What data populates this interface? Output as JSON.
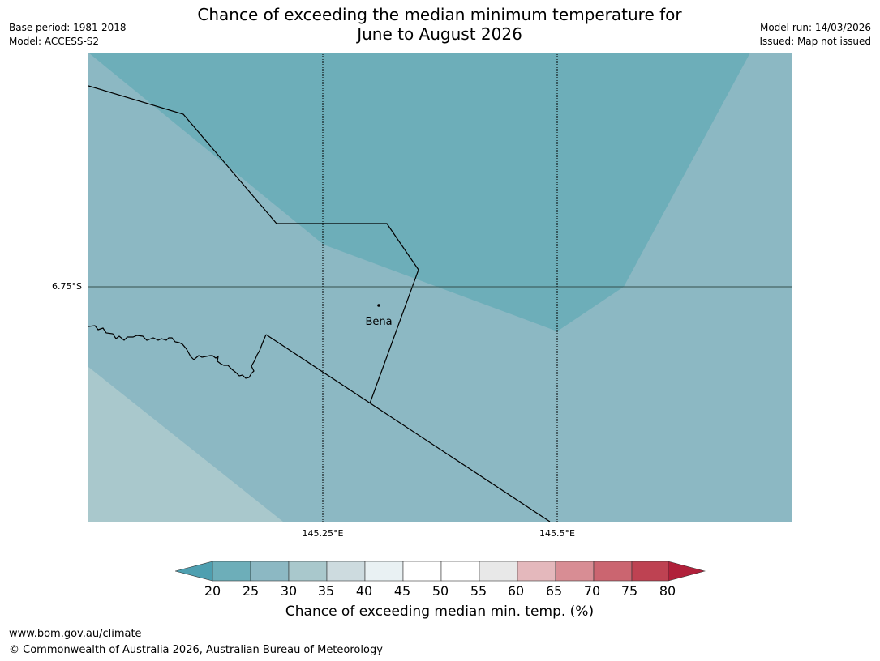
{
  "header": {
    "title_line1": "Chance of exceeding the median minimum temperature for",
    "title_line2": "June to August 2026",
    "base_period": "Base period: 1981-2018",
    "model": "Model: ACCESS-S2",
    "model_run": "Model run: 14/03/2026",
    "issued": "Issued: Map not issued"
  },
  "map": {
    "lat_tick": "6.75°S",
    "lon_ticks": [
      "145.25°E",
      "145.5°E"
    ],
    "places": [
      {
        "name": "Bena"
      }
    ]
  },
  "colorbar": {
    "title": "Chance of exceeding median min. temp. (%)",
    "tick_labels": [
      "20",
      "25",
      "30",
      "35",
      "40",
      "45",
      "50",
      "55",
      "60",
      "65",
      "70",
      "75",
      "80"
    ],
    "colors": {
      "lt20": "#4e9fb0",
      "20-25": "#6daeb9",
      "25-30": "#8cb8c3",
      "30-35": "#a9c8cc",
      "35-40": "#cddbdf",
      "40-45": "#e9f1f3",
      "45-50": "#ffffff",
      "50-55": "#ffffff",
      "55-60": "#e8e8e8",
      "60-65": "#e4b8bc",
      "65-70": "#d88d94",
      "70-75": "#cb6570",
      "75-80": "#be4252",
      "gt80": "#b0203a"
    }
  },
  "footer": {
    "website": "www.bom.gov.au/climate",
    "copyright": "© Commonwealth of Australia 2026, Australian Bureau of Meteorology"
  }
}
